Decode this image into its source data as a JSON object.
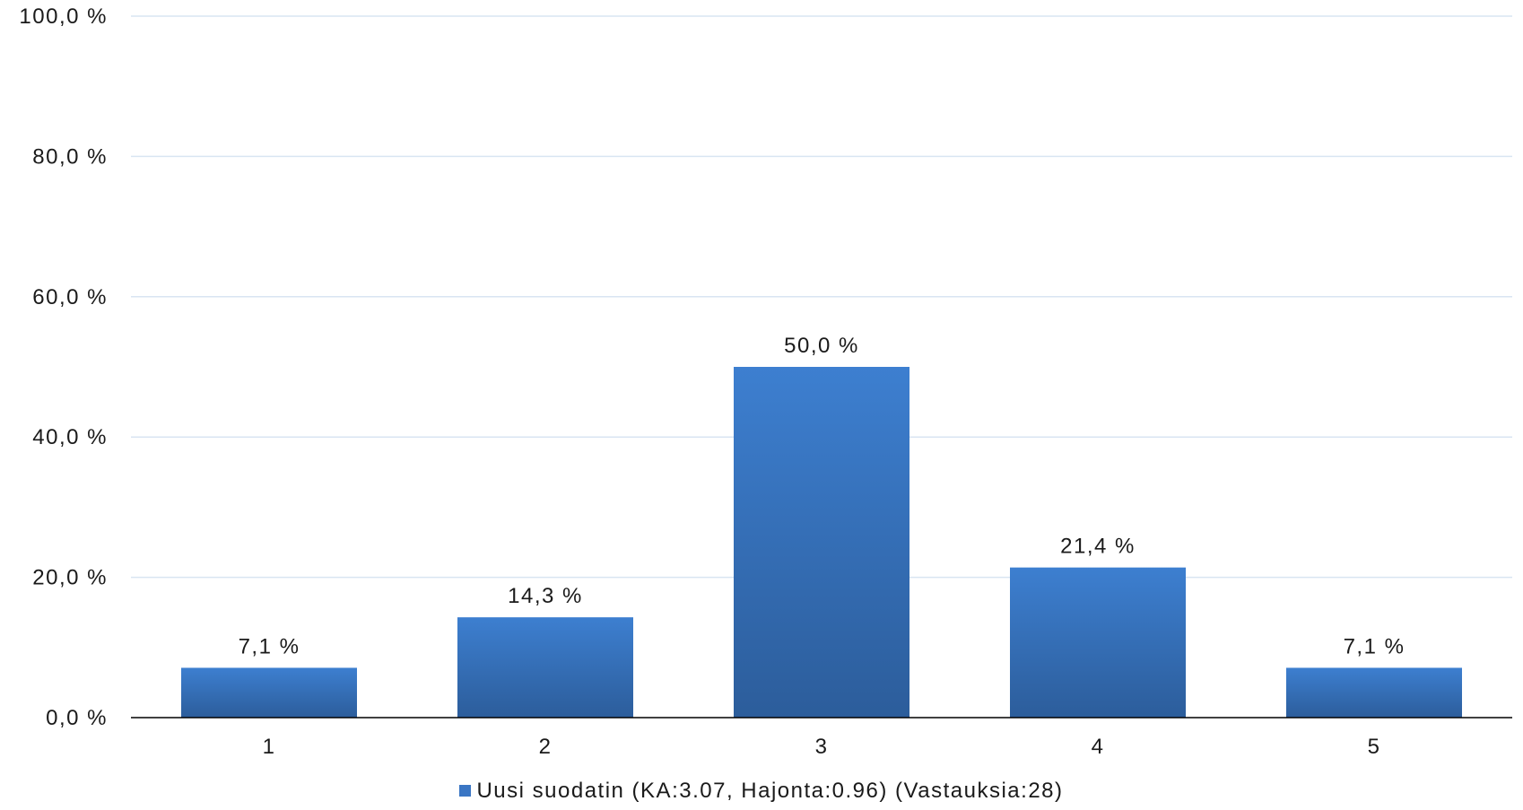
{
  "chart_data": {
    "type": "bar",
    "categories": [
      "1",
      "2",
      "3",
      "4",
      "5"
    ],
    "series": [
      {
        "name": "Uusi suodatin (KA:3.07, Hajonta:0.96) (Vastauksia:28)",
        "values": [
          7.1,
          14.3,
          50.0,
          21.4,
          7.1
        ]
      }
    ],
    "data_labels": [
      "7,1 %",
      "14,3 %",
      "50,0 %",
      "21,4 %",
      "7,1 %"
    ],
    "y_ticks": [
      {
        "value": 0,
        "label": "0,0 %"
      },
      {
        "value": 20,
        "label": "20,0 %"
      },
      {
        "value": 40,
        "label": "40,0 %"
      },
      {
        "value": 60,
        "label": "60,0 %"
      },
      {
        "value": 80,
        "label": "80,0 %"
      },
      {
        "value": 100,
        "label": "100,0 %"
      }
    ],
    "ylim": [
      0,
      100
    ],
    "grid": true,
    "legend_position": "bottom",
    "colors": {
      "bar_top": "#3d7fd0",
      "bar_bottom": "#2c5d9b",
      "grid": "#d9e5f2",
      "axis": "#000000"
    }
  },
  "legend": {
    "label": "Uusi suodatin (KA:3.07, Hajonta:0.96) (Vastauksia:28)",
    "color": "#3a76c4"
  }
}
